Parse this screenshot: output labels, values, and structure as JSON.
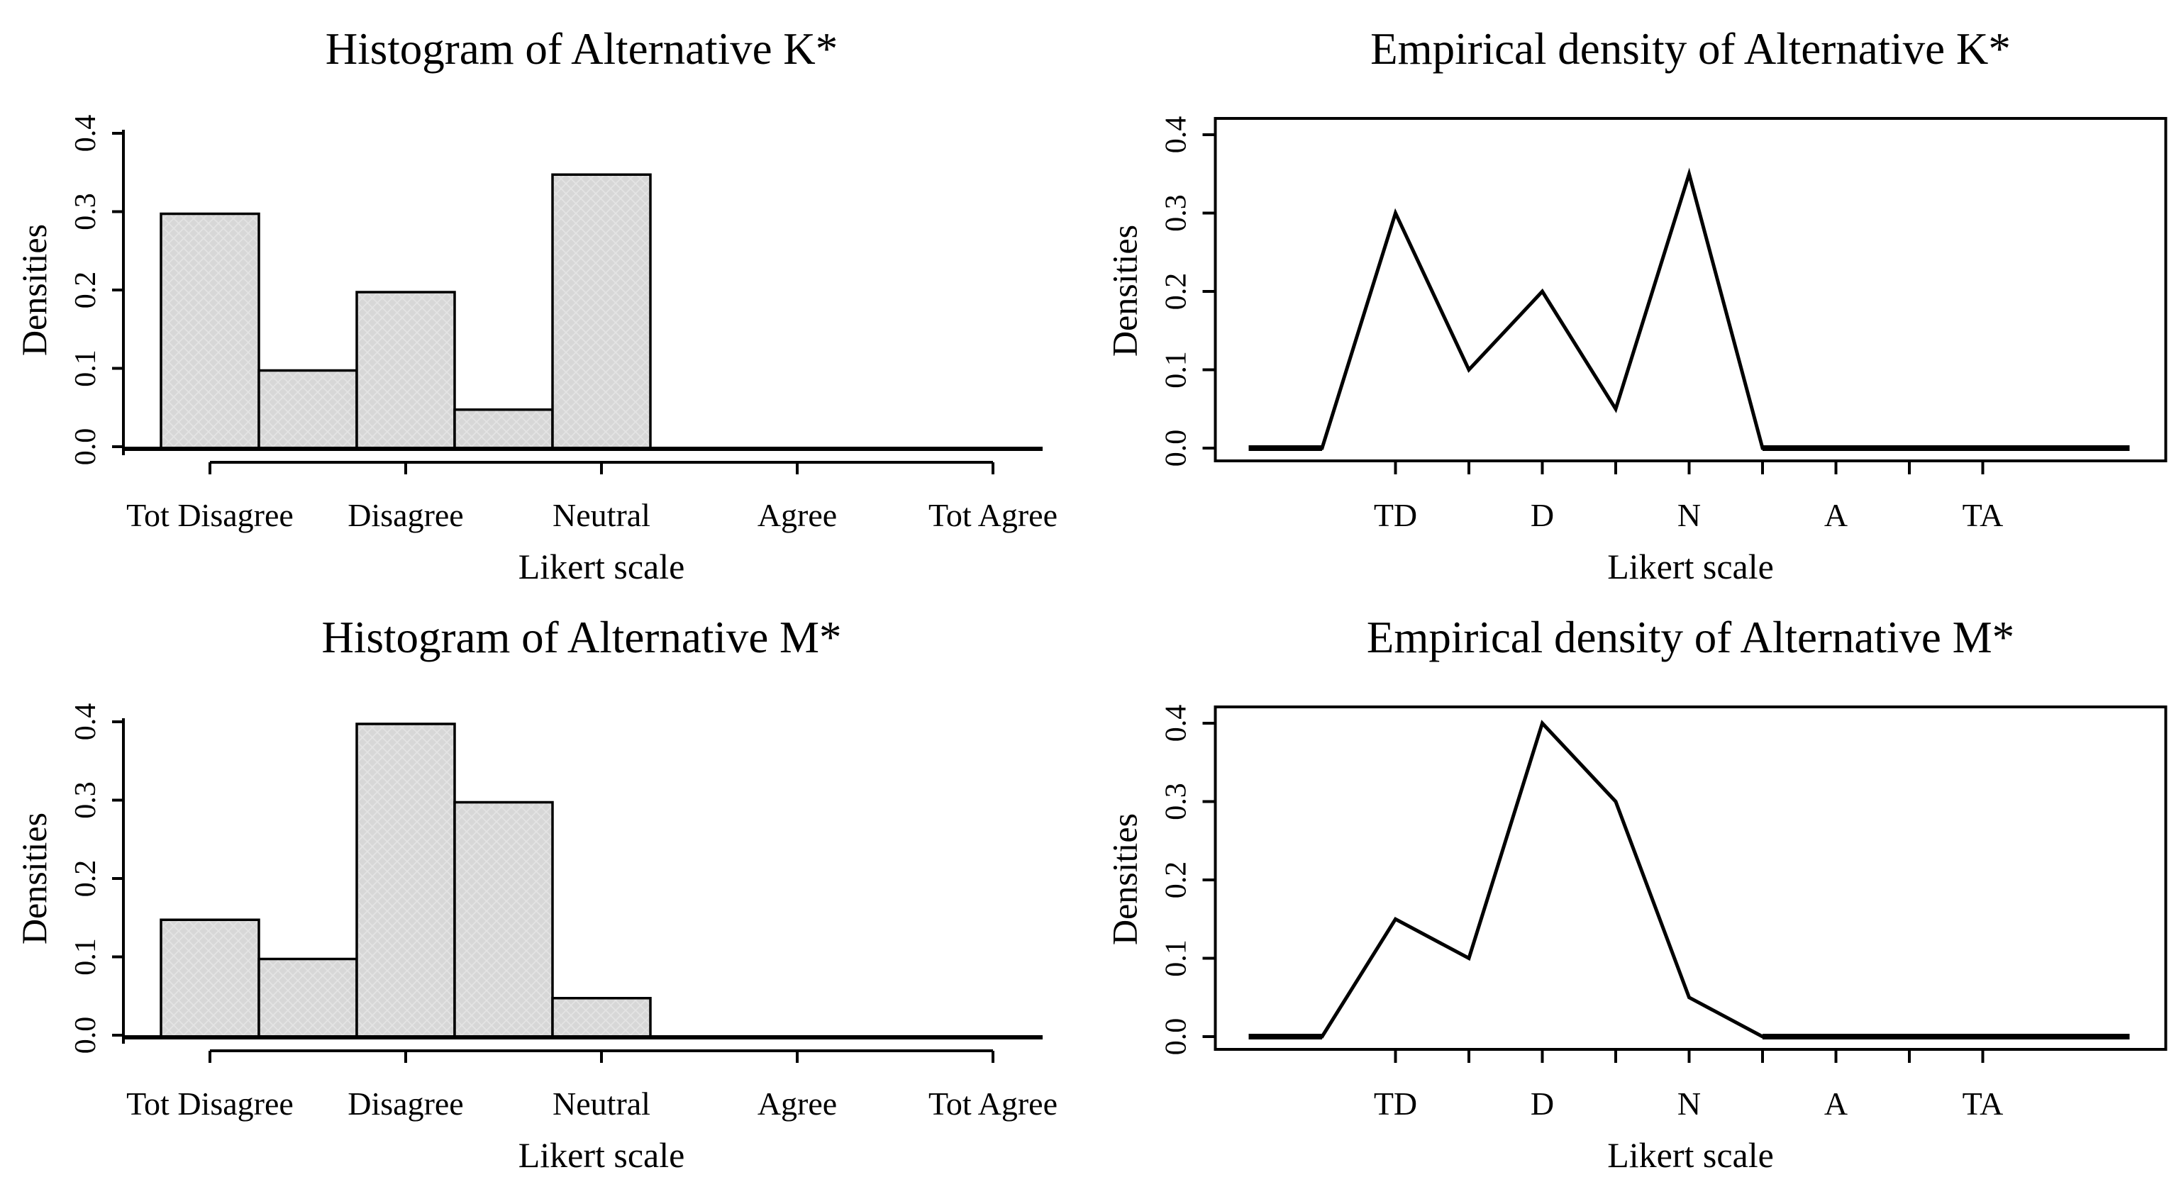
{
  "page": {
    "background": "#ffffff",
    "description": "Four-panel statistical figure: histograms and empirical densities of Likert-scale alternatives"
  },
  "colors": {
    "stroke": "#000000",
    "bar_fill": "#d7d7d7",
    "bar_texture": "#e4e4e4",
    "bar_border": "#000000",
    "text": "#000000"
  },
  "chart_data": [
    {
      "id": "hist-k",
      "type": "bar",
      "title": "Histogram of Alternative K*",
      "xlabel": "Likert scale",
      "ylabel": "Densities",
      "categories": [
        "Tot Disagree",
        "Disagree",
        "Neutral",
        "Agree",
        "Tot Agree"
      ],
      "category_positions": [
        1,
        2,
        3,
        4,
        5
      ],
      "bar_width": 0.5,
      "bars": [
        {
          "x": 1.0,
          "density": 0.3
        },
        {
          "x": 1.5,
          "density": 0.1
        },
        {
          "x": 2.0,
          "density": 0.2
        },
        {
          "x": 2.5,
          "density": 0.05
        },
        {
          "x": 3.0,
          "density": 0.35
        }
      ],
      "ylim": [
        0,
        0.4
      ],
      "y_ticks": [
        0,
        0.1,
        0.2,
        0.3,
        0.4
      ],
      "y_tick_labels": [
        "0.0",
        "0.1",
        "0.2",
        "0.3",
        "0.4"
      ],
      "grid": "off",
      "legend": "none"
    },
    {
      "id": "dens-k",
      "type": "line",
      "title": "Empirical density of Alternative K*",
      "xlabel": "Likert scale",
      "ylabel": "Densities",
      "categories": [
        "TD",
        "D",
        "N",
        "A",
        "TA"
      ],
      "category_positions": [
        1,
        2,
        3,
        4,
        5
      ],
      "x_tick_positions": [
        1,
        1.5,
        2,
        2.5,
        3,
        3.5,
        4,
        4.5,
        5
      ],
      "x": [
        0,
        0.5,
        1,
        1.5,
        2,
        2.5,
        3,
        3.5,
        4,
        4.5,
        5,
        5.5,
        6
      ],
      "y": [
        0,
        0,
        0.3,
        0.1,
        0.2,
        0.05,
        0.35,
        0,
        0,
        0,
        0,
        0,
        0
      ],
      "xlim": [
        -0.24,
        6.24
      ],
      "ylim": [
        -0.016,
        0.416
      ],
      "boxed": true,
      "grid": "off",
      "legend": "none"
    },
    {
      "id": "hist-m",
      "type": "bar",
      "title": "Histogram of Alternative M*",
      "xlabel": "Likert scale",
      "ylabel": "Densities",
      "categories": [
        "Tot Disagree",
        "Disagree",
        "Neutral",
        "Agree",
        "Tot Agree"
      ],
      "category_positions": [
        1,
        2,
        3,
        4,
        5
      ],
      "bar_width": 0.5,
      "bars": [
        {
          "x": 1.0,
          "density": 0.15
        },
        {
          "x": 1.5,
          "density": 0.1
        },
        {
          "x": 2.0,
          "density": 0.4
        },
        {
          "x": 2.5,
          "density": 0.3
        },
        {
          "x": 3.0,
          "density": 0.05
        }
      ],
      "ylim": [
        0,
        0.4
      ],
      "y_ticks": [
        0,
        0.1,
        0.2,
        0.3,
        0.4
      ],
      "y_tick_labels": [
        "0.0",
        "0.1",
        "0.2",
        "0.3",
        "0.4"
      ],
      "grid": "off",
      "legend": "none"
    },
    {
      "id": "dens-m",
      "type": "line",
      "title": "Empirical density of Alternative M*",
      "xlabel": "Likert scale",
      "ylabel": "Densities",
      "categories": [
        "TD",
        "D",
        "N",
        "A",
        "TA"
      ],
      "category_positions": [
        1,
        2,
        3,
        4,
        5
      ],
      "x_tick_positions": [
        1,
        1.5,
        2,
        2.5,
        3,
        3.5,
        4,
        4.5,
        5
      ],
      "x": [
        0,
        0.5,
        1,
        1.5,
        2,
        2.5,
        3,
        3.5,
        4,
        4.5,
        5,
        5.5,
        6
      ],
      "y": [
        0,
        0,
        0.15,
        0.1,
        0.4,
        0.3,
        0.05,
        0,
        0,
        0,
        0,
        0,
        0
      ],
      "xlim": [
        -0.24,
        6.24
      ],
      "ylim": [
        -0.016,
        0.416
      ],
      "boxed": true,
      "grid": "off",
      "legend": "none"
    }
  ]
}
